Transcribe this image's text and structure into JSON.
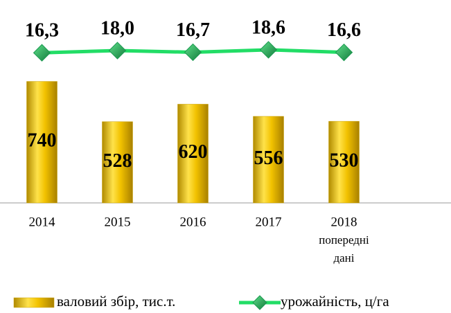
{
  "chart_data": {
    "type": "bar-line",
    "categories": [
      "2014",
      "2015",
      "2016",
      "2017",
      [
        "2018",
        "попередні",
        "дані"
      ]
    ],
    "ylim": [
      100,
      950
    ],
    "y2lim": [
      -100,
      25
    ],
    "series": [
      {
        "name": "валовий збір, тис.т.",
        "type": "bar",
        "color": "#f2c200",
        "values": [
          740,
          528,
          620,
          556,
          530
        ]
      },
      {
        "name": "урожайність, ц/га",
        "type": "line",
        "axis": "y2",
        "color": "#22dd66",
        "marker_color": "#1a9a50",
        "values": [
          16.3,
          18.0,
          16.7,
          18.6,
          16.6
        ],
        "value_labels": [
          "16,3",
          "18,0",
          "16,7",
          "18,6",
          "16,6"
        ]
      }
    ]
  }
}
